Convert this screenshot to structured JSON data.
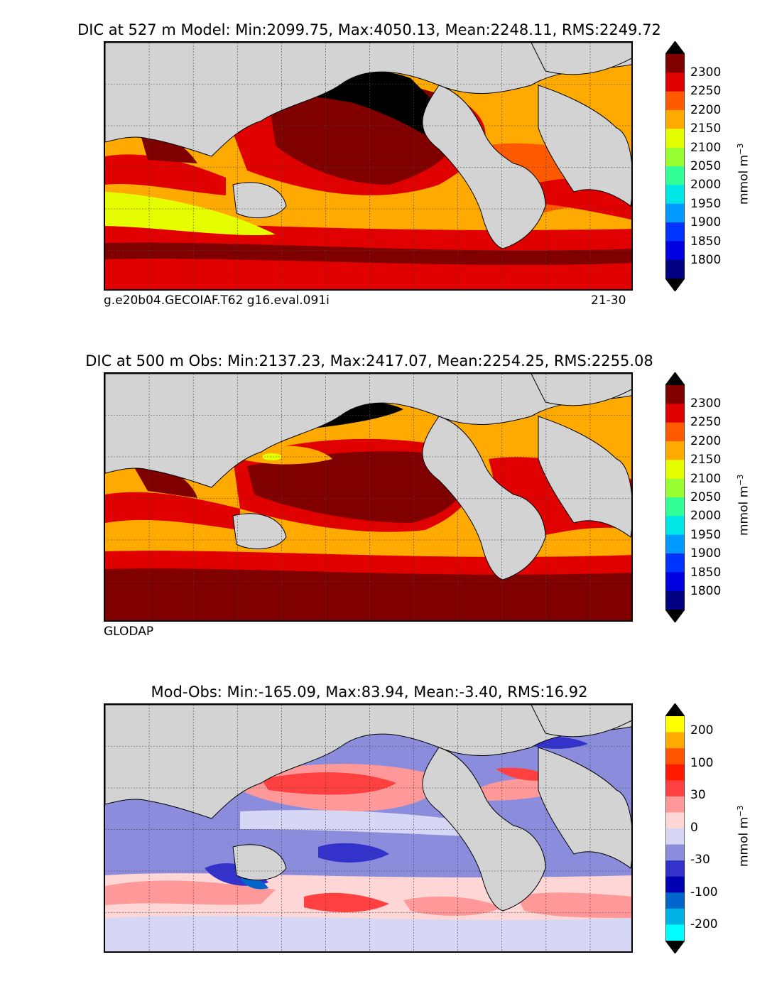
{
  "panels": [
    {
      "title": "DIC at 527 m Model: Min:2099.75, Max:4050.13, Mean:2248.11, RMS:2249.72",
      "note_left": "g.e20b04.GECOIAF.T62 g16.eval.091i",
      "note_right": "21-30"
    },
    {
      "title": "DIC at 500 m Obs: Min:2137.23, Max:2417.07, Mean:2254.25, RMS:2255.08",
      "note_left": "GLODAP",
      "note_right": ""
    },
    {
      "title": "Mod-Obs: Min:-165.09, Max:83.94, Mean:-3.40, RMS:16.92",
      "note_left": "",
      "note_right": ""
    }
  ],
  "colorbars": [
    {
      "unit": "mmol m",
      "unit_exp": "−3",
      "ticks": [
        "2300",
        "2250",
        "2200",
        "2150",
        "2100",
        "2050",
        "2000",
        "1950",
        "1900",
        "1850",
        "1800"
      ],
      "colors": [
        "#000000",
        "#800000",
        "#e00000",
        "#ff5a00",
        "#ffaa00",
        "#e6ff00",
        "#99ff33",
        "#33ff99",
        "#00e6e6",
        "#0099ff",
        "#0033ff",
        "#0000e0",
        "#000080",
        "#000000"
      ]
    },
    {
      "unit": "mmol m",
      "unit_exp": "−3",
      "ticks": [
        "2300",
        "2250",
        "2200",
        "2150",
        "2100",
        "2050",
        "2000",
        "1950",
        "1900",
        "1850",
        "1800"
      ],
      "colors": [
        "#000000",
        "#800000",
        "#e00000",
        "#ff5a00",
        "#ffaa00",
        "#e6ff00",
        "#99ff33",
        "#33ff99",
        "#00e6e6",
        "#0099ff",
        "#0033ff",
        "#0000e0",
        "#000080",
        "#000000"
      ]
    },
    {
      "unit": "mmol m",
      "unit_exp": "−3",
      "ticks": [
        "200",
        "100",
        "30",
        "0",
        "-30",
        "-100",
        "-200"
      ],
      "colors": [
        "#000000",
        "#ffff00",
        "#ffaa00",
        "#ff5500",
        "#ff1a00",
        "#ff4040",
        "#ff9999",
        "#ffd6d6",
        "#d6d6f5",
        "#8c8cdd",
        "#3333cc",
        "#0000b3",
        "#0066cc",
        "#00b3e6",
        "#00ffff",
        "#000000"
      ]
    }
  ],
  "chart_data": [
    {
      "type": "heatmap",
      "title": "DIC at 527 m Model: Min:2099.75, Max:4050.13, Mean:2248.11, RMS:2249.72",
      "levels": [
        1800,
        1850,
        1900,
        1950,
        2000,
        2050,
        2100,
        2150,
        2200,
        2250,
        2300
      ],
      "stats": {
        "min": 2099.75,
        "max": 4050.13,
        "mean": 2248.11,
        "rms": 2249.72
      },
      "colors": {
        "land": "#d3d3d3",
        "missing": "#ffffff"
      }
    },
    {
      "type": "heatmap",
      "title": "DIC at 500 m Obs: Min:2137.23, Max:2417.07, Mean:2254.25, RMS:2255.08",
      "levels": [
        1800,
        1850,
        1900,
        1950,
        2000,
        2050,
        2100,
        2150,
        2200,
        2250,
        2300
      ],
      "stats": {
        "min": 2137.23,
        "max": 2417.07,
        "mean": 2254.25,
        "rms": 2255.08
      }
    },
    {
      "type": "heatmap",
      "title": "Mod-Obs: Min:-165.09, Max:83.94, Mean:-3.40, RMS:16.92",
      "levels": [
        -200,
        -100,
        -30,
        0,
        30,
        100,
        200
      ],
      "stats": {
        "min": -165.09,
        "max": 83.94,
        "mean": -3.4,
        "rms": 16.92
      }
    }
  ]
}
